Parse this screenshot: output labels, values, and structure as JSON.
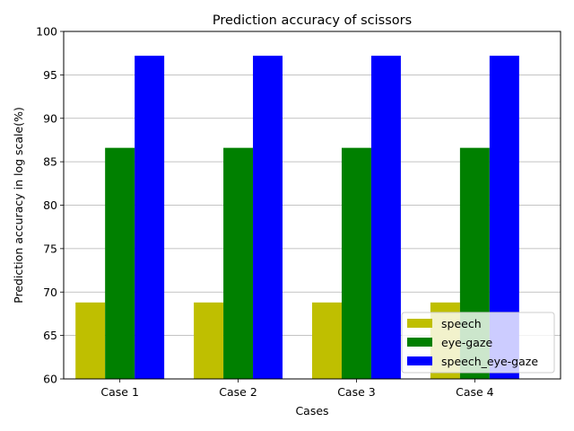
{
  "chart_data": {
    "type": "bar",
    "title": "Prediction accuracy of scissors",
    "xlabel": "Cases",
    "ylabel": "Prediction accuracy in log scale(%)",
    "categories": [
      "Case 1",
      "Case 2",
      "Case 3",
      "Case 4"
    ],
    "series": [
      {
        "name": "speech",
        "color": "#bfbf00",
        "values": [
          68.8,
          68.8,
          68.8,
          68.8
        ]
      },
      {
        "name": "eye-gaze",
        "color": "#008000",
        "values": [
          86.6,
          86.6,
          86.6,
          86.6
        ]
      },
      {
        "name": "speech_eye-gaze",
        "color": "#0000ff",
        "values": [
          97.2,
          97.2,
          97.2,
          97.2
        ]
      }
    ],
    "ylim": [
      60,
      100
    ],
    "yticks": [
      60,
      65,
      70,
      75,
      80,
      85,
      90,
      95,
      100
    ],
    "ytick_labels": [
      "60",
      "65",
      "70",
      "75",
      "80",
      "85",
      "90",
      "95",
      "100"
    ],
    "grid": "y-major",
    "legend_placement": "lower-right"
  }
}
